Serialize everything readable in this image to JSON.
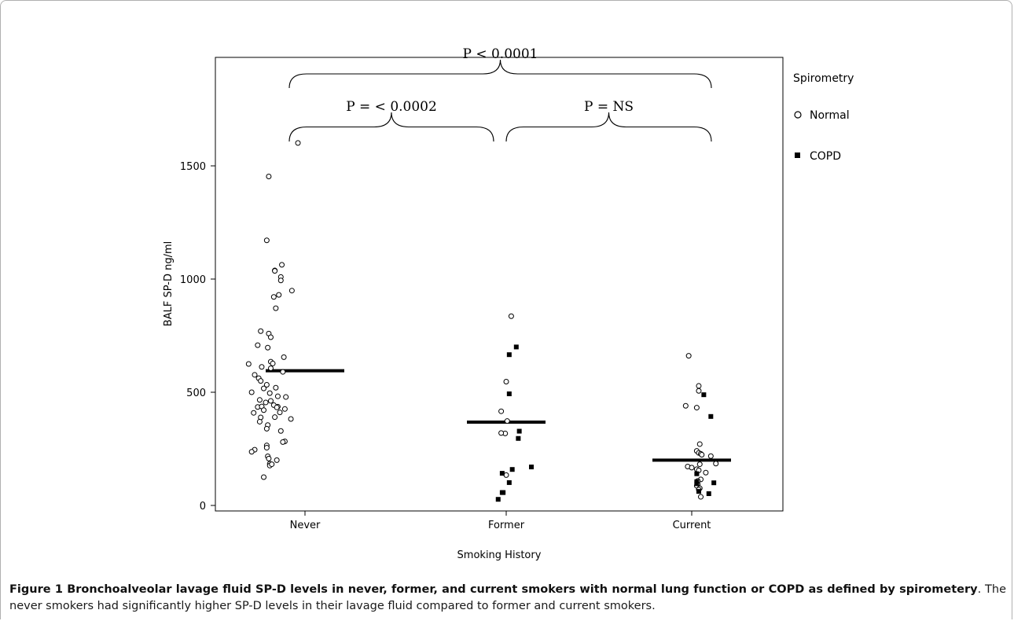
{
  "chart_data": {
    "type": "scatter",
    "xlabel": "Smoking History",
    "ylabel": "BALF SP-D ng/ml",
    "categories": [
      "Never",
      "Former",
      "Current"
    ],
    "ylim": [
      -30,
      1870
    ],
    "yticks": [
      0,
      500,
      1000,
      1500
    ],
    "legend": {
      "title": "Spirometry",
      "placement": "right",
      "entries": [
        {
          "label": "Normal",
          "marker": "open-circle"
        },
        {
          "label": "COPD",
          "marker": "filled-square"
        }
      ]
    },
    "means": {
      "Never": 595,
      "Former": 368,
      "Current": 200
    },
    "comparisons": [
      {
        "from": "Never",
        "to": "Current",
        "label": "P < 0.0001"
      },
      {
        "from": "Never",
        "to": "Former",
        "label": "P = < 0.0002"
      },
      {
        "from": "Former",
        "to": "Current",
        "label": "P = NS"
      }
    ],
    "series": [
      {
        "name": "Normal",
        "points": [
          [
            "Never",
            -0.07,
            1601
          ],
          [
            "Never",
            -0.36,
            1453
          ],
          [
            "Never",
            -0.38,
            1171
          ],
          [
            "Never",
            -0.23,
            1063
          ],
          [
            "Never",
            -0.3,
            1038
          ],
          [
            "Never",
            -0.3,
            1036
          ],
          [
            "Never",
            -0.24,
            1009
          ],
          [
            "Never",
            -0.24,
            994
          ],
          [
            "Never",
            -0.13,
            949
          ],
          [
            "Never",
            -0.26,
            930
          ],
          [
            "Never",
            -0.31,
            921
          ],
          [
            "Never",
            -0.29,
            871
          ],
          [
            "Never",
            -0.44,
            770
          ],
          [
            "Never",
            -0.36,
            759
          ],
          [
            "Never",
            -0.34,
            743
          ],
          [
            "Never",
            -0.47,
            708
          ],
          [
            "Never",
            -0.37,
            697
          ],
          [
            "Never",
            -0.21,
            655
          ],
          [
            "Never",
            -0.34,
            635
          ],
          [
            "Never",
            -0.32,
            627
          ],
          [
            "Never",
            -0.56,
            625
          ],
          [
            "Never",
            -0.43,
            612
          ],
          [
            "Never",
            -0.34,
            606
          ],
          [
            "Never",
            -0.22,
            590
          ],
          [
            "Never",
            -0.5,
            577
          ],
          [
            "Never",
            -0.46,
            562
          ],
          [
            "Never",
            -0.44,
            550
          ],
          [
            "Never",
            -0.38,
            533
          ],
          [
            "Never",
            -0.29,
            520
          ],
          [
            "Never",
            -0.41,
            517
          ],
          [
            "Never",
            -0.53,
            500
          ],
          [
            "Never",
            -0.35,
            496
          ],
          [
            "Never",
            -0.27,
            482
          ],
          [
            "Never",
            -0.19,
            479
          ],
          [
            "Never",
            -0.45,
            466
          ],
          [
            "Never",
            -0.34,
            462
          ],
          [
            "Never",
            -0.39,
            455
          ],
          [
            "Never",
            -0.31,
            443
          ],
          [
            "Never",
            -0.27,
            436
          ],
          [
            "Never",
            -0.47,
            435
          ],
          [
            "Never",
            -0.43,
            437
          ],
          [
            "Never",
            -0.28,
            433
          ],
          [
            "Never",
            -0.2,
            426
          ],
          [
            "Never",
            -0.41,
            421
          ],
          [
            "Never",
            -0.25,
            411
          ],
          [
            "Never",
            -0.51,
            409
          ],
          [
            "Never",
            -0.3,
            390
          ],
          [
            "Never",
            -0.44,
            389
          ],
          [
            "Never",
            -0.14,
            382
          ],
          [
            "Never",
            -0.45,
            370
          ],
          [
            "Never",
            -0.37,
            355
          ],
          [
            "Never",
            -0.38,
            339
          ],
          [
            "Never",
            -0.24,
            329
          ],
          [
            "Never",
            -0.2,
            283
          ],
          [
            "Never",
            -0.22,
            280
          ],
          [
            "Never",
            -0.38,
            265
          ],
          [
            "Never",
            -0.38,
            255
          ],
          [
            "Never",
            -0.5,
            246
          ],
          [
            "Never",
            -0.53,
            237
          ],
          [
            "Never",
            -0.37,
            217
          ],
          [
            "Never",
            -0.36,
            207
          ],
          [
            "Never",
            -0.28,
            200
          ],
          [
            "Never",
            -0.35,
            184
          ],
          [
            "Never",
            -0.35,
            176
          ],
          [
            "Never",
            -0.33,
            182
          ],
          [
            "Never",
            -0.41,
            125
          ],
          [
            "Former",
            0.05,
            836
          ],
          [
            "Former",
            0.0,
            547
          ],
          [
            "Former",
            -0.05,
            416
          ],
          [
            "Former",
            0.01,
            373
          ],
          [
            "Former",
            -0.01,
            318
          ],
          [
            "Former",
            -0.05,
            320
          ],
          [
            "Former",
            -0.0,
            134
          ],
          [
            "Current",
            -0.03,
            661
          ],
          [
            "Current",
            0.07,
            528
          ],
          [
            "Current",
            0.07,
            506
          ],
          [
            "Current",
            -0.06,
            440
          ],
          [
            "Current",
            0.05,
            432
          ],
          [
            "Current",
            0.08,
            271
          ],
          [
            "Current",
            0.05,
            241
          ],
          [
            "Current",
            0.07,
            232
          ],
          [
            "Current",
            0.09,
            228
          ],
          [
            "Current",
            0.1,
            224
          ],
          [
            "Current",
            0.19,
            218
          ],
          [
            "Current",
            0.24,
            185
          ],
          [
            "Current",
            0.08,
            182
          ],
          [
            "Current",
            -0.04,
            172
          ],
          [
            "Current",
            0.0,
            167
          ],
          [
            "Current",
            0.05,
            160
          ],
          [
            "Current",
            0.07,
            155
          ],
          [
            "Current",
            0.14,
            145
          ],
          [
            "Current",
            0.09,
            115
          ],
          [
            "Current",
            0.06,
            108
          ],
          [
            "Current",
            0.06,
            93
          ],
          [
            "Current",
            0.05,
            87
          ],
          [
            "Current",
            0.08,
            76
          ],
          [
            "Current",
            0.07,
            70
          ],
          [
            "Current",
            0.09,
            38
          ]
        ]
      },
      {
        "name": "COPD",
        "points": [
          [
            "Former",
            0.1,
            700
          ],
          [
            "Former",
            0.03,
            666
          ],
          [
            "Former",
            0.03,
            493
          ],
          [
            "Former",
            0.13,
            328
          ],
          [
            "Former",
            0.12,
            296
          ],
          [
            "Former",
            0.25,
            170
          ],
          [
            "Former",
            0.06,
            159
          ],
          [
            "Former",
            -0.04,
            142
          ],
          [
            "Former",
            0.03,
            101
          ],
          [
            "Former",
            -0.04,
            57
          ],
          [
            "Former",
            -0.03,
            57
          ],
          [
            "Former",
            -0.08,
            27
          ],
          [
            "Current",
            0.19,
            393
          ],
          [
            "Current",
            0.12,
            489
          ],
          [
            "Current",
            0.05,
            140
          ],
          [
            "Current",
            0.05,
            105
          ],
          [
            "Current",
            0.05,
            96
          ],
          [
            "Current",
            0.07,
            62
          ],
          [
            "Current",
            0.22,
            100
          ],
          [
            "Current",
            0.17,
            52
          ]
        ]
      }
    ]
  },
  "caption": {
    "bold": "Figure 1 Bronchoalveolar lavage fluid SP-D levels in never, former, and current smokers with normal lung function or COPD as defined by spirometery",
    "text": ". The never smokers had significantly higher SP-D levels in their lavage fluid compared to former and current smokers."
  }
}
